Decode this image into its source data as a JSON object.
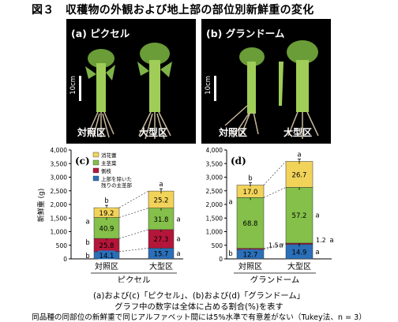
{
  "figure": {
    "title": "図３　収穫物の外観および地上部の部位別新鮮重の変化",
    "photos": [
      {
        "panel_label": "(a) ピクセル",
        "plot_labels": [
          "対照区",
          "大型区"
        ],
        "scale_label": "10cm"
      },
      {
        "panel_label": "(b) グランドーム",
        "plot_labels": [
          "対照区",
          "大型区"
        ],
        "scale_label": "10cm"
      }
    ],
    "notes": [
      "(a)および(c)「ピクセル」、(b)および(d)「グランドーム」",
      "グラフ中の数字は全体に占める割合(%)を表す",
      "同品種の同部位の新鮮重で同じアルファベット間には5%水準で有意差がない（Tukey法、n = 3）"
    ]
  },
  "colors": {
    "消花蕾": "#f2d35a",
    "主茎葉": "#84c04a",
    "側枝": "#b4163a",
    "主茎": "#2a6fb8",
    "photo_bg": "#000000",
    "plant_green": "#8fbf45",
    "root": "#c8b79a"
  },
  "chart_data": [
    {
      "type": "bar",
      "stacked": true,
      "panel_label": "(c)",
      "variety": "ピクセル",
      "ylabel": "新鮮重 (g)",
      "ylim": [
        0,
        4000
      ],
      "yticks": [
        "0",
        "500",
        "1,000",
        "1,500",
        "2,000",
        "2,500",
        "3,000",
        "3,500",
        "4,000"
      ],
      "categories": [
        "対照区",
        "大型区"
      ],
      "legend": {
        "placement": "top-left",
        "entries": [
          "消花蕾",
          "主茎葉",
          "側枝",
          "上部を除いた\n残りの主茎部"
        ]
      },
      "series": [
        {
          "name": "主茎",
          "values": [
            265,
            395
          ],
          "pct_labels": [
            "14.1",
            "15.7"
          ],
          "letters": [
            "b",
            "a"
          ]
        },
        {
          "name": "側枝",
          "values": [
            485,
            680
          ],
          "pct_labels": [
            "25.8",
            "27.3"
          ],
          "letters": [
            "b",
            "a"
          ]
        },
        {
          "name": "主茎葉",
          "values": [
            770,
            790
          ],
          "pct_labels": [
            "40.9",
            "31.8"
          ],
          "letters": [
            "a",
            "a"
          ]
        },
        {
          "name": "消花蕾",
          "values": [
            360,
            625
          ],
          "pct_labels": [
            "19.2",
            "25.2"
          ],
          "letters": [
            "b",
            "a"
          ]
        }
      ]
    },
    {
      "type": "bar",
      "stacked": true,
      "panel_label": "(d)",
      "variety": "グランドーム",
      "ylabel": "",
      "ylim": [
        0,
        4000
      ],
      "yticks": [
        "0",
        "500",
        "1,000",
        "1,500",
        "2,000",
        "2,500",
        "3,000",
        "3,500",
        "4,000"
      ],
      "categories": [
        "対照区",
        "大型区"
      ],
      "series": [
        {
          "name": "主茎",
          "values": [
            345,
            535
          ],
          "pct_labels": [
            "12.7",
            "14.9"
          ],
          "letters": [
            "b",
            "a"
          ]
        },
        {
          "name": "側枝",
          "values": [
            40,
            45
          ],
          "pct_labels": [
            "1.5",
            "1.2"
          ],
          "letters": [
            "a",
            "a"
          ]
        },
        {
          "name": "主茎葉",
          "values": [
            1865,
            2045
          ],
          "pct_labels": [
            "68.8",
            "57.2"
          ],
          "letters": [
            "a",
            "a"
          ]
        },
        {
          "name": "消花蕾",
          "values": [
            460,
            955
          ],
          "pct_labels": [
            "17.0",
            "26.7"
          ],
          "letters": [
            "b",
            "a"
          ]
        }
      ]
    }
  ]
}
